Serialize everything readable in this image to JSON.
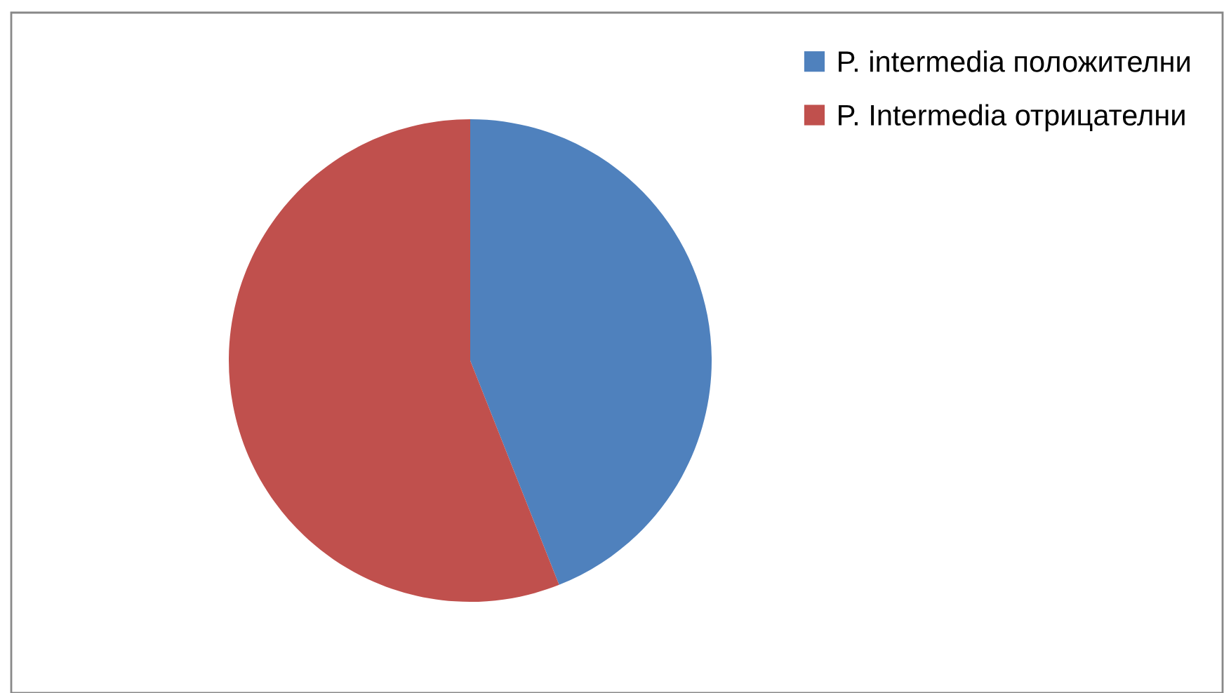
{
  "chart_data": {
    "type": "pie",
    "categories": [
      "P. intermedia положителни",
      "P. Intermedia отрицателни"
    ],
    "values": [
      44,
      56
    ],
    "colors": [
      "#4f81bd",
      "#c0504d"
    ],
    "legend": "top right"
  }
}
